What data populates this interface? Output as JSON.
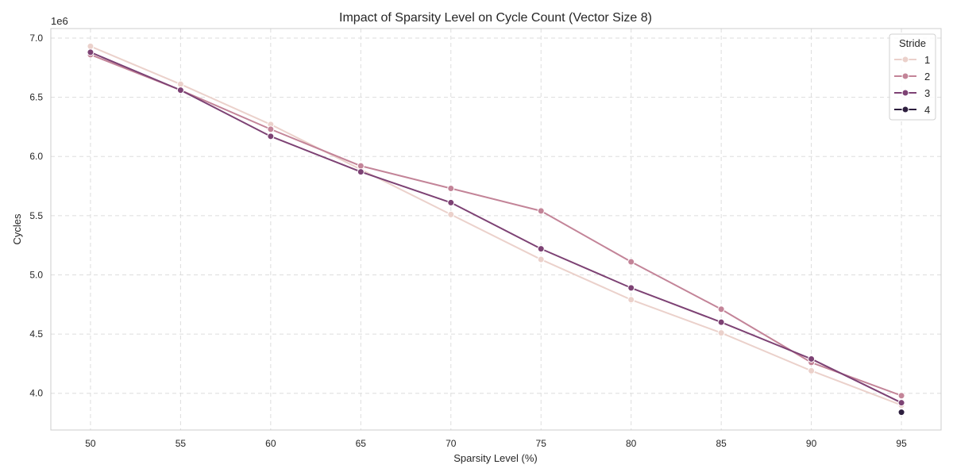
{
  "chart_data": {
    "type": "line",
    "title": "Impact of Sparsity Level on Cycle Count (Vector Size 8)",
    "xlabel": "Sparsity Level (%)",
    "ylabel": "Cycles",
    "y_offset_label": "1e6",
    "x_ticks": [
      50,
      55,
      60,
      65,
      70,
      75,
      80,
      85,
      90,
      95
    ],
    "y_ticks": [
      4.0,
      4.5,
      5.0,
      5.5,
      6.0,
      6.5,
      7.0
    ],
    "xlim": [
      47.8,
      97.2
    ],
    "ylim": [
      3.69,
      7.08
    ],
    "y_unit_multiplier": 1000000,
    "grid": true,
    "legend": {
      "title": "Stride",
      "position": "top-right"
    },
    "x": [
      50,
      55,
      60,
      65,
      70,
      75,
      80,
      85,
      90,
      95
    ],
    "series": [
      {
        "name": "1",
        "color": "#ebd1cb",
        "x": [
          50,
          55,
          60,
          65,
          70,
          75,
          80,
          85,
          90,
          95
        ],
        "values": [
          6.93,
          6.61,
          6.27,
          5.89,
          5.51,
          5.13,
          4.79,
          4.51,
          4.19,
          3.9
        ]
      },
      {
        "name": "2",
        "color": "#c38498",
        "x": [
          50,
          55,
          60,
          65,
          70,
          75,
          80,
          85,
          90,
          95
        ],
        "values": [
          6.86,
          6.56,
          6.23,
          5.92,
          5.73,
          5.54,
          5.11,
          4.71,
          4.26,
          3.98
        ]
      },
      {
        "name": "3",
        "color": "#7d4274",
        "x": [
          50,
          55,
          60,
          65,
          70,
          75,
          80,
          85,
          90,
          95
        ],
        "values": [
          6.88,
          6.56,
          6.17,
          5.87,
          5.61,
          5.22,
          4.89,
          4.6,
          4.29,
          3.92
        ]
      },
      {
        "name": "4",
        "color": "#2d1e3e",
        "x": [
          95
        ],
        "values": [
          3.84
        ]
      }
    ]
  }
}
